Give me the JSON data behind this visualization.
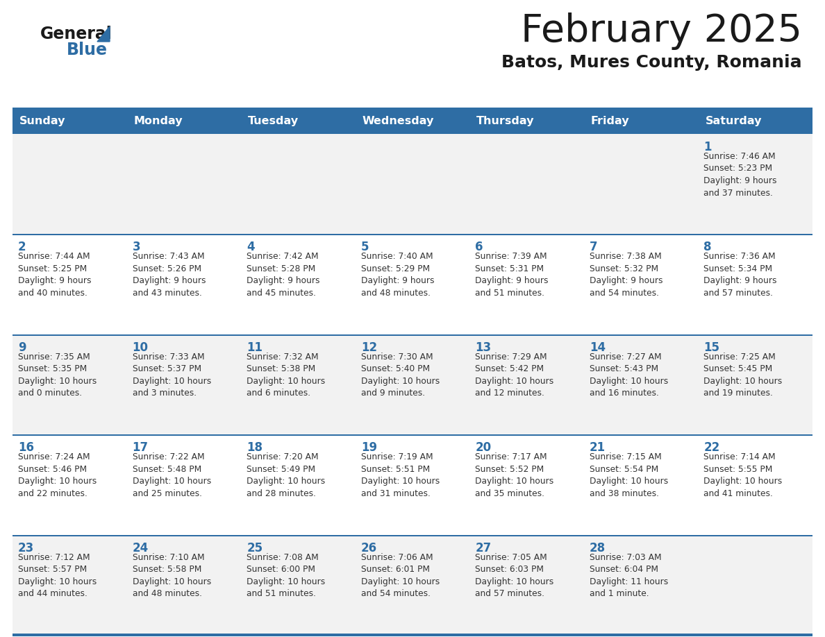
{
  "title": "February 2025",
  "subtitle": "Batos, Mures County, Romania",
  "header_color": "#2E6DA4",
  "header_text_color": "#FFFFFF",
  "cell_bg_even": "#F2F2F2",
  "cell_bg_odd": "#FFFFFF",
  "border_color": "#2E6DA4",
  "days_of_week": [
    "Sunday",
    "Monday",
    "Tuesday",
    "Wednesday",
    "Thursday",
    "Friday",
    "Saturday"
  ],
  "title_color": "#1a1a1a",
  "subtitle_color": "#1a1a1a",
  "day_num_color": "#2E6DA4",
  "cell_text_color": "#333333",
  "logo_general_color": "#1a1a1a",
  "logo_blue_color": "#2E6DA4",
  "logo_triangle_color": "#2E6DA4",
  "calendar": [
    [
      {
        "day": 0,
        "text": ""
      },
      {
        "day": 0,
        "text": ""
      },
      {
        "day": 0,
        "text": ""
      },
      {
        "day": 0,
        "text": ""
      },
      {
        "day": 0,
        "text": ""
      },
      {
        "day": 0,
        "text": ""
      },
      {
        "day": 1,
        "text": "Sunrise: 7:46 AM\nSunset: 5:23 PM\nDaylight: 9 hours\nand 37 minutes."
      }
    ],
    [
      {
        "day": 2,
        "text": "Sunrise: 7:44 AM\nSunset: 5:25 PM\nDaylight: 9 hours\nand 40 minutes."
      },
      {
        "day": 3,
        "text": "Sunrise: 7:43 AM\nSunset: 5:26 PM\nDaylight: 9 hours\nand 43 minutes."
      },
      {
        "day": 4,
        "text": "Sunrise: 7:42 AM\nSunset: 5:28 PM\nDaylight: 9 hours\nand 45 minutes."
      },
      {
        "day": 5,
        "text": "Sunrise: 7:40 AM\nSunset: 5:29 PM\nDaylight: 9 hours\nand 48 minutes."
      },
      {
        "day": 6,
        "text": "Sunrise: 7:39 AM\nSunset: 5:31 PM\nDaylight: 9 hours\nand 51 minutes."
      },
      {
        "day": 7,
        "text": "Sunrise: 7:38 AM\nSunset: 5:32 PM\nDaylight: 9 hours\nand 54 minutes."
      },
      {
        "day": 8,
        "text": "Sunrise: 7:36 AM\nSunset: 5:34 PM\nDaylight: 9 hours\nand 57 minutes."
      }
    ],
    [
      {
        "day": 9,
        "text": "Sunrise: 7:35 AM\nSunset: 5:35 PM\nDaylight: 10 hours\nand 0 minutes."
      },
      {
        "day": 10,
        "text": "Sunrise: 7:33 AM\nSunset: 5:37 PM\nDaylight: 10 hours\nand 3 minutes."
      },
      {
        "day": 11,
        "text": "Sunrise: 7:32 AM\nSunset: 5:38 PM\nDaylight: 10 hours\nand 6 minutes."
      },
      {
        "day": 12,
        "text": "Sunrise: 7:30 AM\nSunset: 5:40 PM\nDaylight: 10 hours\nand 9 minutes."
      },
      {
        "day": 13,
        "text": "Sunrise: 7:29 AM\nSunset: 5:42 PM\nDaylight: 10 hours\nand 12 minutes."
      },
      {
        "day": 14,
        "text": "Sunrise: 7:27 AM\nSunset: 5:43 PM\nDaylight: 10 hours\nand 16 minutes."
      },
      {
        "day": 15,
        "text": "Sunrise: 7:25 AM\nSunset: 5:45 PM\nDaylight: 10 hours\nand 19 minutes."
      }
    ],
    [
      {
        "day": 16,
        "text": "Sunrise: 7:24 AM\nSunset: 5:46 PM\nDaylight: 10 hours\nand 22 minutes."
      },
      {
        "day": 17,
        "text": "Sunrise: 7:22 AM\nSunset: 5:48 PM\nDaylight: 10 hours\nand 25 minutes."
      },
      {
        "day": 18,
        "text": "Sunrise: 7:20 AM\nSunset: 5:49 PM\nDaylight: 10 hours\nand 28 minutes."
      },
      {
        "day": 19,
        "text": "Sunrise: 7:19 AM\nSunset: 5:51 PM\nDaylight: 10 hours\nand 31 minutes."
      },
      {
        "day": 20,
        "text": "Sunrise: 7:17 AM\nSunset: 5:52 PM\nDaylight: 10 hours\nand 35 minutes."
      },
      {
        "day": 21,
        "text": "Sunrise: 7:15 AM\nSunset: 5:54 PM\nDaylight: 10 hours\nand 38 minutes."
      },
      {
        "day": 22,
        "text": "Sunrise: 7:14 AM\nSunset: 5:55 PM\nDaylight: 10 hours\nand 41 minutes."
      }
    ],
    [
      {
        "day": 23,
        "text": "Sunrise: 7:12 AM\nSunset: 5:57 PM\nDaylight: 10 hours\nand 44 minutes."
      },
      {
        "day": 24,
        "text": "Sunrise: 7:10 AM\nSunset: 5:58 PM\nDaylight: 10 hours\nand 48 minutes."
      },
      {
        "day": 25,
        "text": "Sunrise: 7:08 AM\nSunset: 6:00 PM\nDaylight: 10 hours\nand 51 minutes."
      },
      {
        "day": 26,
        "text": "Sunrise: 7:06 AM\nSunset: 6:01 PM\nDaylight: 10 hours\nand 54 minutes."
      },
      {
        "day": 27,
        "text": "Sunrise: 7:05 AM\nSunset: 6:03 PM\nDaylight: 10 hours\nand 57 minutes."
      },
      {
        "day": 28,
        "text": "Sunrise: 7:03 AM\nSunset: 6:04 PM\nDaylight: 11 hours\nand 1 minute."
      },
      {
        "day": 0,
        "text": ""
      }
    ]
  ]
}
